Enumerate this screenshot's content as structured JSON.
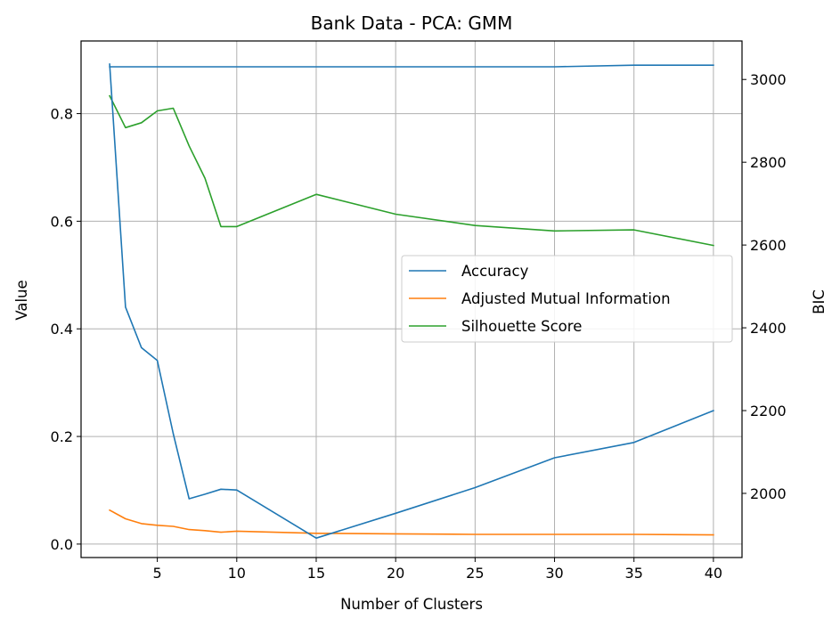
{
  "chart_data": {
    "type": "line",
    "title": "Bank Data - PCA: GMM",
    "xlabel": "Number of Clusters",
    "ylabel": "Value",
    "y2label": "BIC",
    "xlim": [
      0.2,
      41.8
    ],
    "ylim": [
      -0.025,
      0.935
    ],
    "y2lim": [
      1845,
      3093
    ],
    "x": [
      2,
      3,
      4,
      5,
      6,
      7,
      8,
      9,
      10,
      15,
      20,
      25,
      30,
      35,
      40
    ],
    "xticks": [
      "5",
      "10",
      "15",
      "20",
      "25",
      "30",
      "35",
      "40"
    ],
    "yticks": [
      "0.0",
      "0.2",
      "0.4",
      "0.6",
      "0.8"
    ],
    "y2ticks": [
      "2000",
      "2200",
      "2400",
      "2600",
      "2800",
      "3000"
    ],
    "grid": true,
    "legend_position": "center-right",
    "series": [
      {
        "name": "Accuracy",
        "axis": "left",
        "color": "#1f77b4",
        "values": [
          0.887,
          0.887,
          0.887,
          0.887,
          0.887,
          0.887,
          0.887,
          0.887,
          0.887,
          0.887,
          0.887,
          0.887,
          0.887,
          0.89,
          0.89
        ]
      },
      {
        "name": "Adjusted Mutual Information",
        "axis": "left",
        "color": "#ff7f0e",
        "values": [
          0.063,
          0.047,
          0.038,
          0.035,
          0.033,
          0.027,
          0.025,
          0.022,
          0.024,
          0.02,
          0.019,
          0.018,
          0.018,
          0.018,
          0.017
        ]
      },
      {
        "name": "Silhouette Score",
        "axis": "left",
        "color": "#2ca02c",
        "values": [
          0.833,
          0.774,
          0.783,
          0.805,
          0.81,
          0.74,
          0.68,
          0.59,
          0.59,
          0.65,
          0.613,
          0.592,
          0.582,
          0.584,
          0.555
        ]
      },
      {
        "name": "",
        "axis": "right",
        "color": "#1f77b4",
        "values": [
          3037,
          2450,
          2352,
          2321,
          2144,
          1987,
          1998,
          2010,
          2008,
          1892,
          1952,
          2014,
          2086,
          2123,
          2200
        ]
      }
    ]
  }
}
